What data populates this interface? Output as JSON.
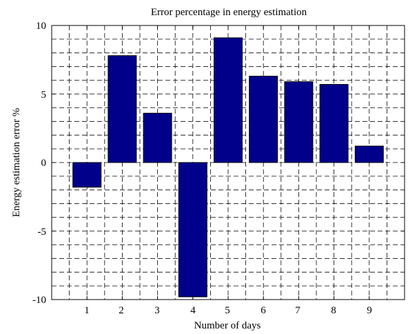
{
  "chart_data": {
    "type": "bar",
    "title": "Error percentage in energy estimation",
    "xlabel": "Number of days",
    "ylabel": "Energy estimation error %",
    "categories": [
      "1",
      "2",
      "3",
      "4",
      "5",
      "6",
      "7",
      "8",
      "9"
    ],
    "values": [
      -1.8,
      7.8,
      3.6,
      -9.8,
      9.1,
      6.3,
      5.9,
      5.7,
      1.2
    ],
    "xlim": [
      0,
      10
    ],
    "ylim": [
      -10,
      10
    ],
    "yticks": [
      "10",
      "5",
      "0",
      "-5",
      "-10"
    ],
    "grid": true,
    "bar_color": "#00008B"
  }
}
